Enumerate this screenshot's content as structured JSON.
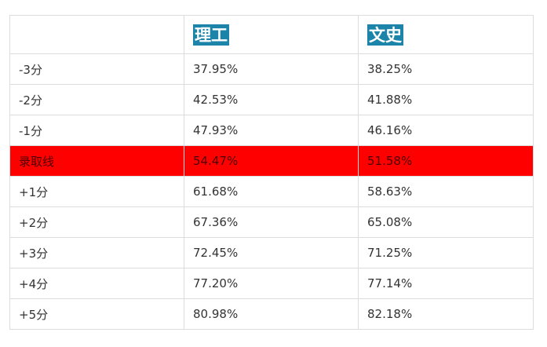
{
  "table": {
    "header": {
      "col0": "",
      "col1": "理工",
      "col2": "文史"
    },
    "highlight_color": "#ff0000",
    "header_badge_color": "#1b84a8",
    "rows": [
      {
        "label": "-3分",
        "science": "37.95%",
        "humanities": "38.25%"
      },
      {
        "label": "-2分",
        "science": "42.53%",
        "humanities": "41.88%"
      },
      {
        "label": "-1分",
        "science": "47.93%",
        "humanities": "46.16%"
      },
      {
        "label": "录取线",
        "science": "54.47%",
        "humanities": "51.58%"
      },
      {
        "label": "+1分",
        "science": "61.68%",
        "humanities": "58.63%"
      },
      {
        "label": "+2分",
        "science": "67.36%",
        "humanities": "65.08%"
      },
      {
        "label": "+3分",
        "science": "72.45%",
        "humanities": "71.25%"
      },
      {
        "label": "+4分",
        "science": "77.20%",
        "humanities": "77.14%"
      },
      {
        "label": "+5分",
        "science": "80.98%",
        "humanities": "82.18%"
      }
    ]
  }
}
